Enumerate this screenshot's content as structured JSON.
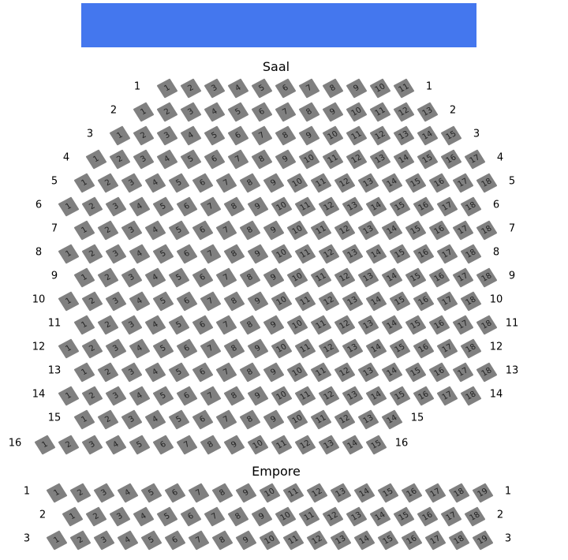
{
  "banner_color": "#4477ee",
  "seat_color": "#808080",
  "sections": [
    {
      "name": "Saal",
      "rows": [
        {
          "label": "1",
          "seats": [
            1,
            2,
            3,
            4,
            5,
            6,
            7,
            8,
            9,
            10,
            11
          ]
        },
        {
          "label": "2",
          "seats": [
            1,
            2,
            3,
            4,
            5,
            6,
            7,
            8,
            9,
            10,
            11,
            12,
            13
          ]
        },
        {
          "label": "3",
          "seats": [
            1,
            2,
            3,
            4,
            5,
            6,
            7,
            8,
            9,
            10,
            11,
            12,
            13,
            14,
            15
          ]
        },
        {
          "label": "4",
          "seats": [
            1,
            2,
            3,
            4,
            5,
            6,
            7,
            8,
            9,
            10,
            11,
            12,
            13,
            14,
            15,
            16,
            17
          ]
        },
        {
          "label": "5",
          "seats": [
            1,
            2,
            3,
            4,
            5,
            6,
            7,
            8,
            9,
            10,
            11,
            12,
            13,
            14,
            15,
            16,
            17,
            18
          ]
        },
        {
          "label": "6",
          "seats": [
            1,
            2,
            3,
            4,
            5,
            6,
            7,
            8,
            9,
            10,
            11,
            12,
            13,
            14,
            15,
            16,
            17,
            18
          ]
        },
        {
          "label": "7",
          "seats": [
            1,
            2,
            3,
            4,
            5,
            6,
            7,
            8,
            9,
            10,
            11,
            12,
            13,
            14,
            15,
            16,
            17,
            18
          ]
        },
        {
          "label": "8",
          "seats": [
            1,
            2,
            3,
            4,
            5,
            6,
            7,
            8,
            9,
            10,
            11,
            12,
            13,
            14,
            15,
            16,
            17,
            18
          ]
        },
        {
          "label": "9",
          "seats": [
            1,
            2,
            3,
            4,
            5,
            6,
            7,
            8,
            9,
            10,
            11,
            12,
            13,
            14,
            15,
            16,
            17,
            18
          ]
        },
        {
          "label": "10",
          "seats": [
            1,
            2,
            3,
            4,
            5,
            6,
            7,
            8,
            9,
            10,
            11,
            12,
            13,
            14,
            15,
            16,
            17,
            18
          ]
        },
        {
          "label": "11",
          "seats": [
            1,
            2,
            3,
            4,
            5,
            6,
            7,
            8,
            9,
            10,
            11,
            12,
            13,
            14,
            15,
            16,
            17,
            18
          ]
        },
        {
          "label": "12",
          "seats": [
            1,
            2,
            3,
            4,
            5,
            6,
            7,
            8,
            9,
            10,
            11,
            12,
            13,
            14,
            15,
            16,
            17,
            18
          ]
        },
        {
          "label": "13",
          "seats": [
            1,
            2,
            3,
            4,
            5,
            6,
            7,
            8,
            9,
            10,
            11,
            12,
            13,
            14,
            15,
            16,
            17,
            18
          ]
        },
        {
          "label": "14",
          "seats": [
            1,
            2,
            3,
            4,
            5,
            6,
            7,
            8,
            9,
            10,
            11,
            12,
            13,
            14,
            15,
            16,
            17,
            18
          ]
        },
        {
          "label": "15",
          "seats": [
            1,
            2,
            3,
            4,
            5,
            6,
            7,
            8,
            9,
            10,
            11,
            12,
            13,
            14
          ]
        },
        {
          "label": "16",
          "seats": [
            1,
            2,
            3,
            4,
            5,
            6,
            7,
            8,
            9,
            10,
            11,
            12,
            13,
            14,
            15
          ]
        }
      ]
    },
    {
      "name": "Empore",
      "rows": [
        {
          "label": "1",
          "seats": [
            1,
            2,
            3,
            4,
            5,
            6,
            7,
            8,
            9,
            10,
            11,
            12,
            13,
            14,
            15,
            16,
            17,
            18,
            19
          ]
        },
        {
          "label": "2",
          "seats": [
            1,
            2,
            3,
            4,
            5,
            6,
            7,
            8,
            9,
            10,
            11,
            12,
            13,
            14,
            15,
            16,
            17,
            18
          ]
        },
        {
          "label": "3",
          "seats": [
            1,
            2,
            3,
            4,
            5,
            6,
            7,
            8,
            9,
            10,
            11,
            12,
            13,
            14,
            15,
            16,
            17,
            18,
            19
          ]
        }
      ]
    }
  ]
}
